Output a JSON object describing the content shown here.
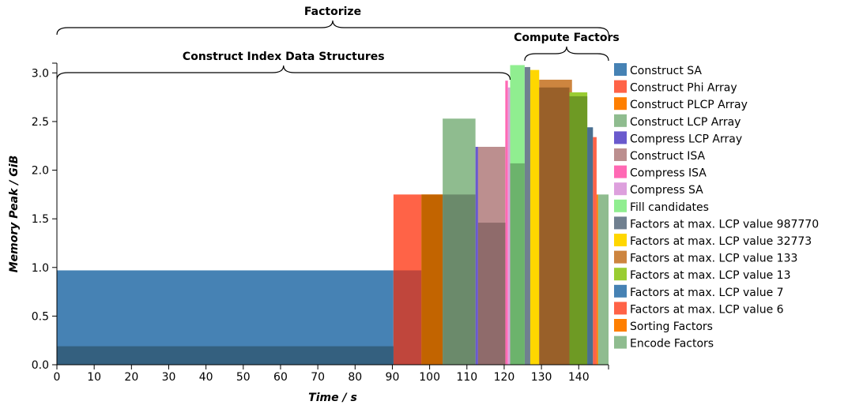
{
  "chart_data": {
    "type": "bar",
    "xlabel": "Time / s",
    "ylabel": "Memory Peak / GiB",
    "xlim": [
      0,
      148
    ],
    "ylim": [
      0,
      3.1
    ],
    "x_ticks": [
      0,
      10,
      20,
      30,
      40,
      50,
      60,
      70,
      80,
      90,
      100,
      110,
      120,
      130,
      140
    ],
    "y_ticks": [
      0.0,
      0.5,
      1.0,
      1.5,
      2.0,
      2.5,
      3.0
    ],
    "x_tick_labels": [
      "0",
      "10",
      "20",
      "30",
      "40",
      "50",
      "60",
      "70",
      "80",
      "90",
      "100",
      "110",
      "120",
      "130",
      "140"
    ],
    "y_tick_labels": [
      "0.0",
      "0.5",
      "1.0",
      "1.5",
      "2.0",
      "2.5",
      "3.0"
    ],
    "grid": false,
    "legend_position": "right",
    "series": [
      {
        "name": "Construct SA",
        "color": "#4682b4",
        "segments": [
          {
            "start": 0,
            "end": 90.3,
            "base": 0.19,
            "peak": 0.97
          }
        ]
      },
      {
        "name": "Construct Phi Array",
        "color": "#ff6347",
        "segments": [
          {
            "start": 90.3,
            "end": 97.8,
            "base": 0.97,
            "peak": 1.75
          }
        ]
      },
      {
        "name": "Construct PLCP Array",
        "color": "#ff7f00",
        "segments": [
          {
            "start": 97.8,
            "end": 103.5,
            "base": 1.75,
            "peak": 1.75
          }
        ]
      },
      {
        "name": "Construct LCP Array",
        "color": "#8fbc8f",
        "segments": [
          {
            "start": 103.5,
            "end": 112.3,
            "base": 1.75,
            "peak": 2.53
          }
        ]
      },
      {
        "name": "Compress LCP Array",
        "color": "#6a5acd",
        "segments": [
          {
            "start": 112.3,
            "end": 113.0,
            "base": 1.46,
            "peak": 2.24
          }
        ]
      },
      {
        "name": "Construct ISA",
        "color": "#bc8f8f",
        "segments": [
          {
            "start": 113.0,
            "end": 120.3,
            "base": 1.46,
            "peak": 2.24
          }
        ]
      },
      {
        "name": "Compress ISA",
        "color": "#ff69b4",
        "segments": [
          {
            "start": 120.3,
            "end": 121.0,
            "base": 2.14,
            "peak": 2.92
          }
        ]
      },
      {
        "name": "Compress SA",
        "color": "#dda0dd",
        "segments": [
          {
            "start": 121.0,
            "end": 121.6,
            "base": 2.07,
            "peak": 2.85
          }
        ]
      },
      {
        "name": "Fill candidates",
        "color": "#90ee90",
        "segments": [
          {
            "start": 121.6,
            "end": 125.5,
            "base": 2.07,
            "peak": 3.08
          }
        ]
      },
      {
        "name": "Factors at max. LCP value 987770",
        "color": "#708090",
        "segments": [
          {
            "start": 125.5,
            "end": 127.0,
            "base": 0,
            "peak": 3.06
          }
        ]
      },
      {
        "name": "Factors at max. LCP value 32773",
        "color": "#ffd700",
        "segments": [
          {
            "start": 127.0,
            "end": 129.4,
            "base": 0,
            "peak": 3.03
          }
        ]
      },
      {
        "name": "Factors at max. LCP value 133",
        "color": "#cd853f",
        "segments": [
          {
            "start": 129.4,
            "end": 138.2,
            "base": 2.85,
            "peak": 2.93
          }
        ]
      },
      {
        "name": "Factors at max. LCP value 13",
        "color": "#9acd32",
        "segments": [
          {
            "start": 137.5,
            "end": 142.3,
            "base": 2.76,
            "peak": 2.8
          }
        ]
      },
      {
        "name": "Factors at max. LCP value 7",
        "color": "#4682b4",
        "segments": [
          {
            "start": 142.3,
            "end": 143.8,
            "base": 0,
            "peak": 2.44
          }
        ]
      },
      {
        "name": "Factors at max. LCP value 6",
        "color": "#ff6347",
        "segments": [
          {
            "start": 143.8,
            "end": 144.8,
            "base": 0,
            "peak": 2.34
          }
        ]
      },
      {
        "name": "Sorting Factors",
        "color": "#ff7f00",
        "segments": [
          {
            "start": 144.8,
            "end": 145.2,
            "base": 0,
            "peak": 1.75
          }
        ]
      },
      {
        "name": "Encode Factors",
        "color": "#8fbc8f",
        "segments": [
          {
            "start": 145.2,
            "end": 148.0,
            "base": 0,
            "peak": 1.75
          }
        ]
      }
    ],
    "annotations": [
      {
        "label": "Factorize",
        "x_start": 0,
        "x_end": 148,
        "y": 3.5
      },
      {
        "label": "Construct Index Data Structures",
        "x_start": 0,
        "x_end": 121.6,
        "y": 3.1
      },
      {
        "label": "Compute Factors",
        "x_start": 125.5,
        "x_end": 148,
        "y": 3.45
      }
    ],
    "underlay_segments": [
      {
        "start": 90.3,
        "end": 97.8,
        "height": 0.97,
        "color": "#c0463c"
      },
      {
        "start": 97.8,
        "end": 103.5,
        "height": 1.75,
        "color": "#c26400"
      },
      {
        "start": 103.5,
        "end": 112.3,
        "height": 1.75,
        "color": "#6b8a6b"
      },
      {
        "start": 113.0,
        "end": 120.3,
        "height": 1.46,
        "color": "#8f6b6b"
      },
      {
        "start": 121.6,
        "end": 125.5,
        "height": 2.07,
        "color": "#6cb36c"
      },
      {
        "start": 129.4,
        "end": 137.5,
        "height": 2.85,
        "color": "#996029"
      },
      {
        "start": 137.5,
        "end": 142.3,
        "height": 2.76,
        "color": "#6e9a24"
      },
      {
        "start": 142.3,
        "end": 143.8,
        "height": 2.44,
        "color": "#4a6f8f"
      },
      {
        "start": 0,
        "end": 90.3,
        "height": 0.19,
        "color": "#34607f"
      }
    ]
  }
}
